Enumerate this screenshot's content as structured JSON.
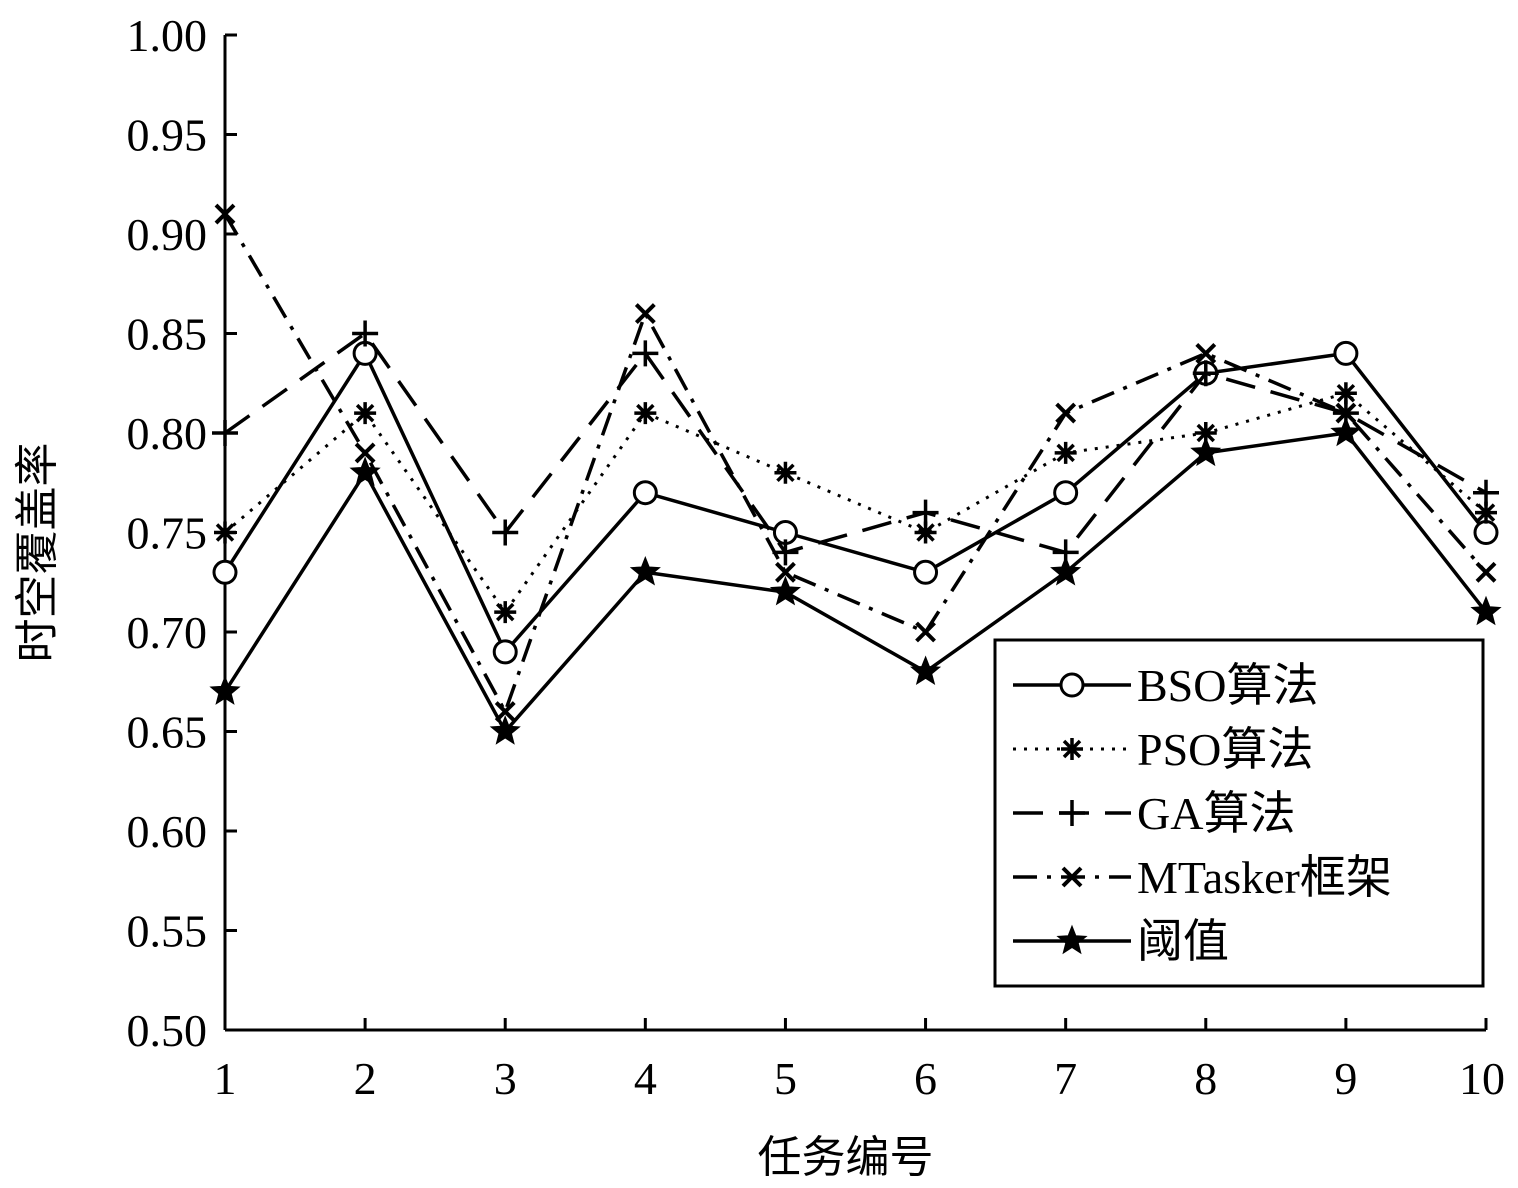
{
  "chart_data": {
    "type": "line",
    "title": "",
    "xlabel": "任务编号",
    "ylabel": "时空覆盖率",
    "x": [
      1,
      2,
      3,
      4,
      5,
      6,
      7,
      8,
      9,
      10
    ],
    "xticks": [
      "1",
      "2",
      "3",
      "4",
      "5",
      "6",
      "7",
      "8",
      "9",
      "10"
    ],
    "yticks": [
      "0.50",
      "0.55",
      "0.60",
      "0.65",
      "0.70",
      "0.75",
      "0.80",
      "0.85",
      "0.90",
      "0.95",
      "1.00"
    ],
    "xlim": [
      1,
      10
    ],
    "ylim": [
      0.5,
      1.0
    ],
    "grid": false,
    "legend_position": "bottom-right",
    "series": [
      {
        "name": "BSO算法",
        "marker": "circle",
        "line": "solid",
        "values": [
          0.73,
          0.84,
          0.69,
          0.77,
          0.75,
          0.73,
          0.77,
          0.83,
          0.84,
          0.75
        ]
      },
      {
        "name": "PSO算法",
        "marker": "asterisk",
        "line": "dotted",
        "values": [
          0.75,
          0.81,
          0.71,
          0.81,
          0.78,
          0.75,
          0.79,
          0.8,
          0.82,
          0.76
        ]
      },
      {
        "name": "GA算法",
        "marker": "plus",
        "line": "dashed",
        "values": [
          0.8,
          0.85,
          0.75,
          0.84,
          0.74,
          0.76,
          0.74,
          0.83,
          0.81,
          0.77
        ]
      },
      {
        "name": "MTasker框架",
        "marker": "x",
        "line": "dashdot",
        "values": [
          0.91,
          0.79,
          0.66,
          0.86,
          0.73,
          0.7,
          0.81,
          0.84,
          0.81,
          0.73
        ]
      },
      {
        "name": "阈值",
        "marker": "star",
        "line": "solid",
        "values": [
          0.67,
          0.78,
          0.65,
          0.73,
          0.72,
          0.68,
          0.73,
          0.79,
          0.8,
          0.71
        ]
      }
    ]
  }
}
